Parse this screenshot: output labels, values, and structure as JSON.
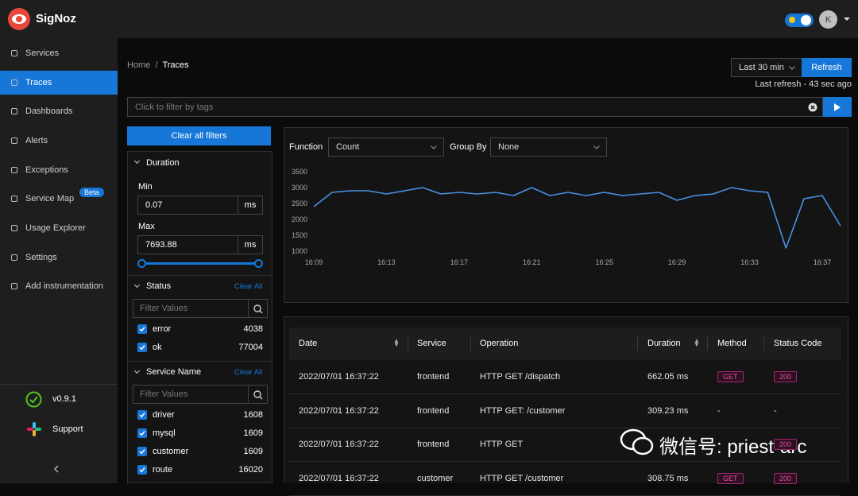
{
  "header": {
    "brand": "SigNoz",
    "avatar": "K"
  },
  "sidebar": {
    "items": [
      "Services",
      "Traces",
      "Dashboards",
      "Alerts",
      "Exceptions",
      "Service Map",
      "Usage Explorer",
      "Settings",
      "Add instrumentation"
    ],
    "badge": "Beta",
    "version": "v0.9.1",
    "support": "Support"
  },
  "breadcrumb": [
    "Home",
    "Traces"
  ],
  "time_range": "Last 30 min",
  "refresh": "Refresh",
  "last_refresh": "Last refresh - 43 sec ago",
  "search_placeholder": "Click to filter by tags",
  "filters": {
    "clear_all": "Clear all filters",
    "duration": {
      "title": "Duration",
      "min_label": "Min",
      "min": 0.07,
      "max_label": "Max",
      "max": 7693.88,
      "unit": "ms"
    },
    "status": {
      "title": "Status",
      "clear": "Clear All",
      "placeholder": "Filter Values",
      "options": [
        {
          "name": "error",
          "count": 4038
        },
        {
          "name": "ok",
          "count": 77004
        }
      ]
    },
    "service_name": {
      "title": "Service Name",
      "clear": "Clear All",
      "placeholder": "Filter Values",
      "options": [
        {
          "name": "driver",
          "count": 1608
        },
        {
          "name": "mysql",
          "count": 1609
        },
        {
          "name": "customer",
          "count": 1609
        },
        {
          "name": "route",
          "count": 16020
        }
      ]
    }
  },
  "chart": {
    "type": "line",
    "function_label": "Function",
    "function": "Count",
    "group_by_label": "Group By",
    "group_by": "None",
    "categories": [
      "16:09",
      null,
      null,
      null,
      "16:13",
      null,
      null,
      null,
      "16:17",
      null,
      null,
      null,
      "16:21",
      null,
      null,
      null,
      "16:25",
      null,
      null,
      null,
      "16:29",
      null,
      null,
      null,
      "16:33",
      null,
      null,
      null,
      "16:37",
      null
    ],
    "values": [
      2400,
      2850,
      2900,
      2900,
      2800,
      2900,
      3000,
      2800,
      2850,
      2800,
      2850,
      2750,
      3000,
      2750,
      2850,
      2750,
      2850,
      2750,
      2800,
      2850,
      2600,
      2750,
      2800,
      3000,
      2900,
      2850,
      1100,
      2650,
      2750,
      1800
    ],
    "ylim": [
      1000,
      3500
    ],
    "yticks": [
      1000,
      1500,
      2000,
      2500,
      3000,
      3500
    ],
    "color": "#4a90e2"
  },
  "table": {
    "columns": [
      "Date",
      "Service",
      "Operation",
      "Duration",
      "Method",
      "Status Code"
    ],
    "rows": [
      {
        "date": "2022/07/01 16:37:22",
        "service": "frontend",
        "operation": "HTTP GET /dispatch",
        "duration": "662.05 ms",
        "method": "GET",
        "status": "200"
      },
      {
        "date": "2022/07/01 16:37:22",
        "service": "frontend",
        "operation": "HTTP GET: /customer",
        "duration": "309.23 ms",
        "method": "-",
        "status": "-"
      },
      {
        "date": "2022/07/01 16:37:22",
        "service": "frontend",
        "operation": "HTTP GET",
        "status": "200"
      },
      {
        "date": "2022/07/01 16:37:22",
        "service": "customer",
        "operation": "HTTP GET /customer",
        "duration": "308.75 ms",
        "method": "GET",
        "status": "200"
      }
    ]
  },
  "watermark": "微信号: priest-arc"
}
